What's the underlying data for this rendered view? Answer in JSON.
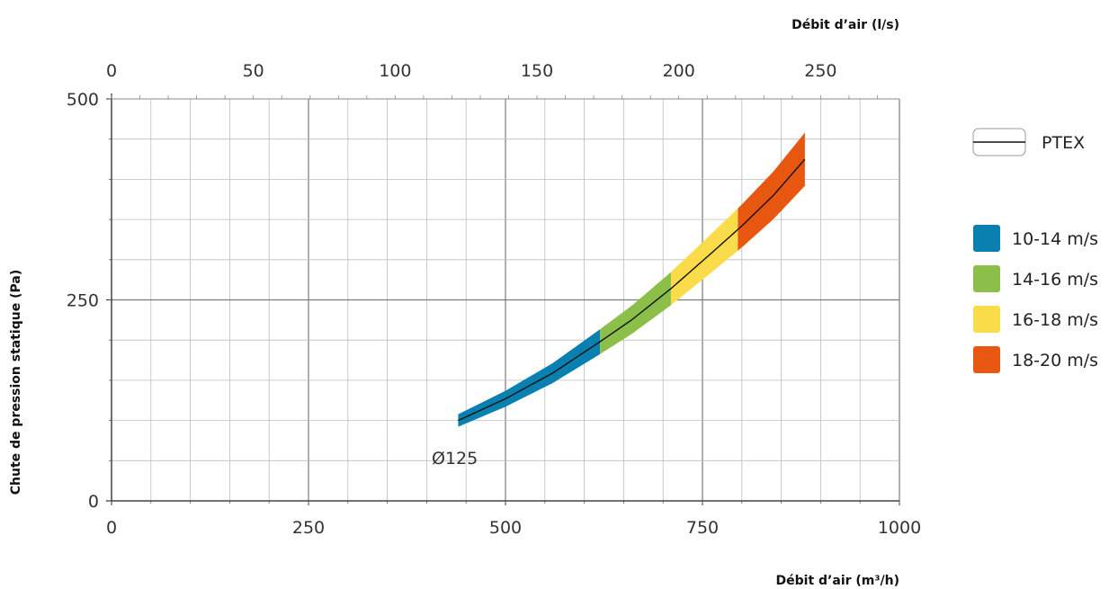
{
  "chart_data": {
    "type": "line",
    "title": "",
    "xlabel": "Débit d’air (m³/h)",
    "x2label": "Débit d’air (l/s)",
    "ylabel": "Chute de pression statique (Pa)",
    "xlim": [
      0,
      1000
    ],
    "ylim": [
      0,
      500
    ],
    "x2lim": [
      0,
      277.78
    ],
    "x_ticks": [
      "0",
      "250",
      "500",
      "750",
      "1000"
    ],
    "x2_ticks": [
      "0",
      "50",
      "100",
      "150",
      "200",
      "250"
    ],
    "y_ticks": [
      "0",
      "250",
      "500"
    ],
    "grid": true,
    "legend_position": "right",
    "series": [
      {
        "name": "PTEX",
        "color": "#111111",
        "x": [
          440,
          500,
          560,
          620,
          660,
          710,
          760,
          800,
          840,
          880
        ],
        "y": [
          100,
          127,
          159,
          198,
          225,
          264,
          307,
          342,
          380,
          425
        ]
      }
    ],
    "bands": [
      {
        "label": "10-14 m/s",
        "color": "#0a80b0",
        "x_from": 440,
        "x_to": 620
      },
      {
        "label": "14-16 m/s",
        "color": "#8bbf4a",
        "x_from": 620,
        "x_to": 710
      },
      {
        "label": "16-18 m/s",
        "color": "#fadc4a",
        "x_from": 710,
        "x_to": 795
      },
      {
        "label": "18-20 m/s",
        "color": "#e8570f",
        "x_from": 795,
        "x_to": 880
      }
    ],
    "annotations": [
      {
        "text": "Ø125",
        "x": 440,
        "y": 52
      }
    ]
  }
}
